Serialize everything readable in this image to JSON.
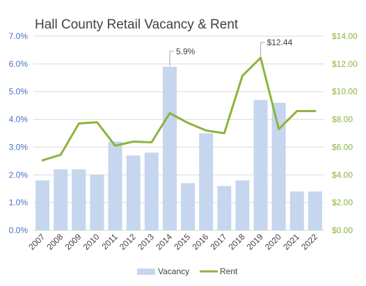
{
  "chart_data": {
    "type": "bar",
    "title": "Hall County Retail Vacancy & Rent",
    "categories": [
      "2007",
      "2008",
      "2009",
      "2010",
      "2011",
      "2012",
      "2013",
      "2014",
      "2015",
      "2016",
      "2017",
      "2018",
      "2019",
      "2020",
      "2021",
      "2022"
    ],
    "series": [
      {
        "name": "Vacancy",
        "type": "bar",
        "axis": "left",
        "values": [
          1.8,
          2.2,
          2.2,
          2.0,
          3.2,
          2.7,
          2.8,
          5.9,
          1.7,
          3.5,
          1.6,
          1.8,
          4.7,
          4.6,
          1.4,
          1.4
        ]
      },
      {
        "name": "Rent",
        "type": "line",
        "axis": "right",
        "values": [
          5.05,
          5.45,
          7.7,
          7.8,
          6.1,
          6.4,
          6.35,
          8.45,
          7.75,
          7.2,
          7.0,
          11.15,
          12.44,
          7.3,
          8.6,
          8.6
        ]
      }
    ],
    "y_left": {
      "ylim": [
        0,
        7
      ],
      "ticks": [
        "0.0%",
        "1.0%",
        "2.0%",
        "3.0%",
        "4.0%",
        "5.0%",
        "6.0%",
        "7.0%"
      ]
    },
    "y_right": {
      "ylim": [
        0,
        14
      ],
      "ticks": [
        "$0.00",
        "$2.00",
        "$4.00",
        "$6.00",
        "$8.00",
        "$10.00",
        "$12.00",
        "$14.00"
      ]
    },
    "annotations": [
      {
        "category": "2014",
        "series": "Vacancy",
        "text": "5.9%"
      },
      {
        "category": "2019",
        "series": "Rent",
        "text": "$12.44"
      }
    ],
    "grid": true,
    "legend_position": "bottom",
    "colors": {
      "bar": "#C5D6EE",
      "line": "#8DB33B",
      "left_axis": "#4472C4",
      "right_axis": "#8DB33B",
      "grid": "#D9D9D9",
      "text": "#404040"
    }
  }
}
